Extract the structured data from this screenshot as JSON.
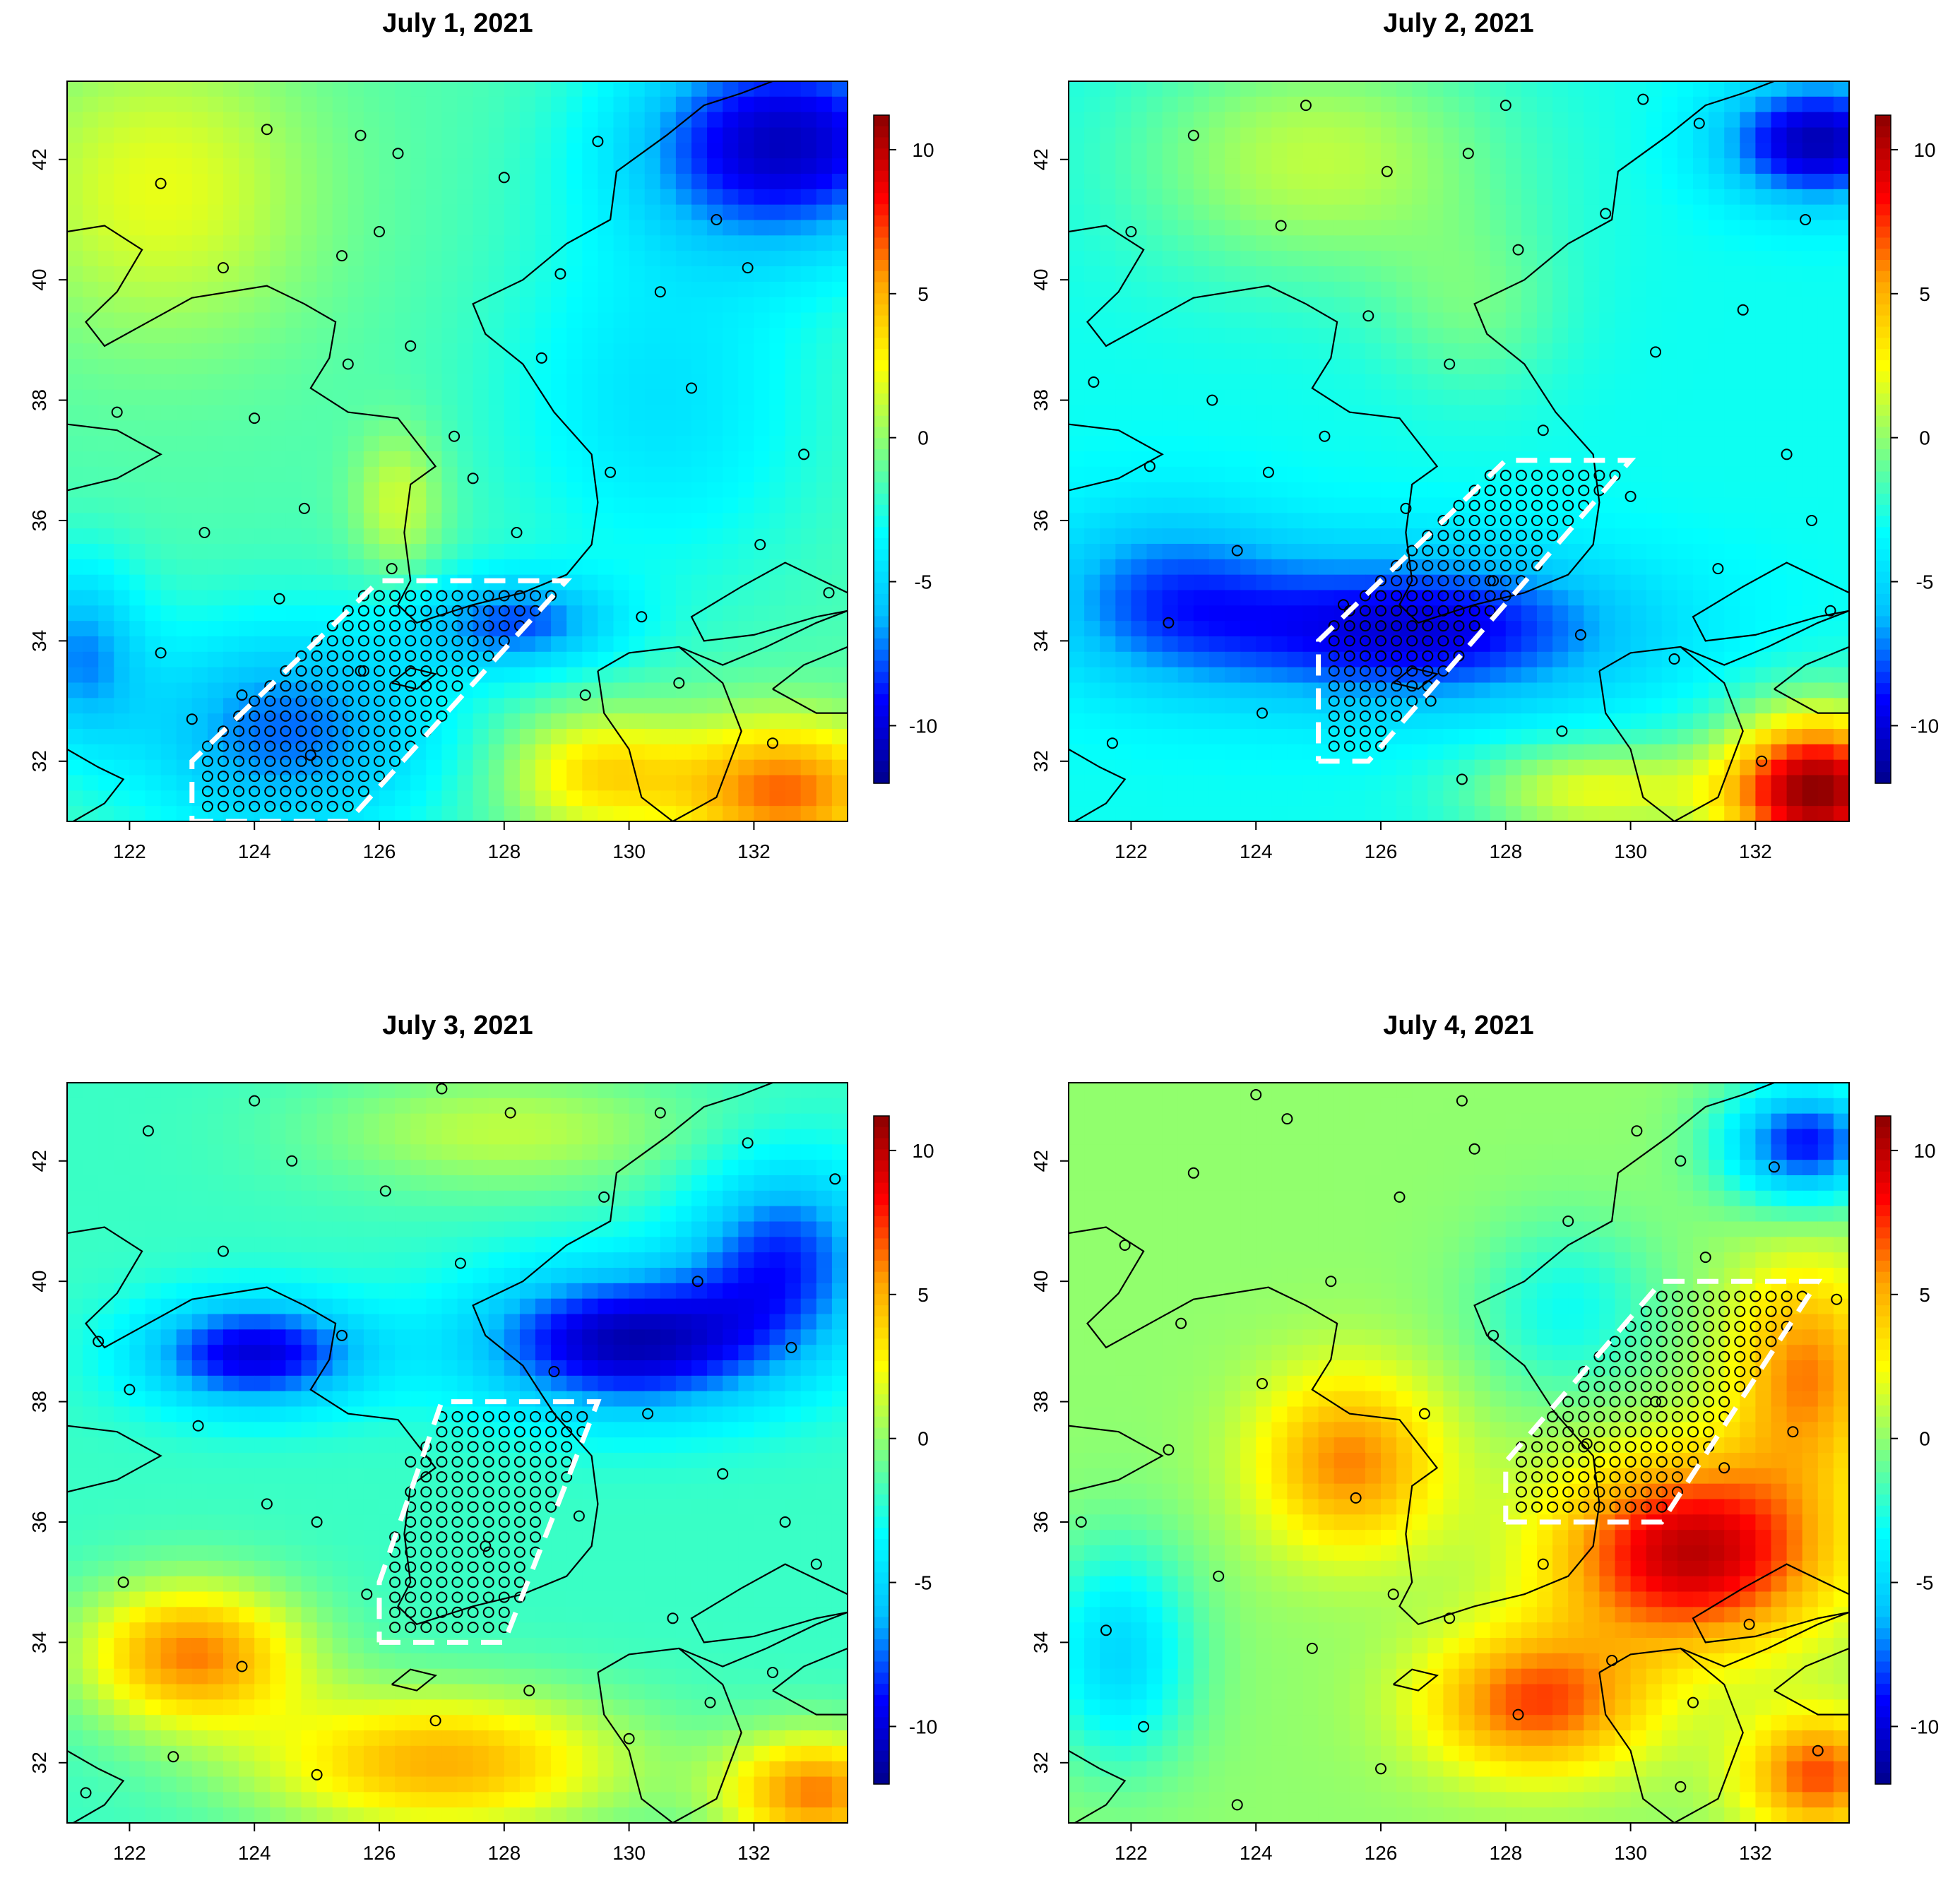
{
  "figure": {
    "panels": [
      {
        "title": "July 1, 2021"
      },
      {
        "title": "July 2, 2021"
      },
      {
        "title": "July 3, 2021"
      },
      {
        "title": "July 4, 2021"
      }
    ]
  },
  "chart_data": [
    {
      "type": "heatmap",
      "title": "July 1, 2021",
      "xlim": [
        121,
        133.5
      ],
      "ylim": [
        31,
        43.3
      ],
      "x_ticks": [
        122,
        124,
        126,
        128,
        130,
        132
      ],
      "y_ticks": [
        32,
        34,
        36,
        38,
        40,
        42
      ],
      "colorbar": {
        "range": [
          -12,
          11.2
        ],
        "ticks": [
          10,
          5,
          0,
          -5,
          -10
        ],
        "colors": [
          "#00008b",
          "#0000ff",
          "#00bfff",
          "#00ffff",
          "#7fff7f",
          "#ffff00",
          "#ffa500",
          "#ff0000",
          "#8b0000"
        ]
      },
      "field": {
        "base": -1.5,
        "features": [
          {
            "lon": 132.5,
            "lat": 42.3,
            "amp": -9,
            "sx": 2.5,
            "sy": 1.8
          },
          {
            "lon": 124.5,
            "lat": 32.5,
            "amp": -6,
            "sx": 2.5,
            "sy": 1.8
          },
          {
            "lon": 128.2,
            "lat": 34.3,
            "amp": -6,
            "sx": 1.6,
            "sy": 0.8
          },
          {
            "lon": 130.5,
            "lat": 38.0,
            "amp": -3,
            "sx": 2.5,
            "sy": 3.0
          },
          {
            "lon": 122.5,
            "lat": 41.5,
            "amp": 3.5,
            "sx": 2.5,
            "sy": 2.5
          },
          {
            "lon": 126.3,
            "lat": 36.3,
            "amp": 3,
            "sx": 0.7,
            "sy": 1.2
          },
          {
            "lon": 132.5,
            "lat": 31.5,
            "amp": 8,
            "sx": 1.8,
            "sy": 1.2
          },
          {
            "lon": 129.5,
            "lat": 31.8,
            "amp": 5,
            "sx": 1.5,
            "sy": 1.0
          },
          {
            "lon": 121.2,
            "lat": 33.8,
            "amp": -5,
            "sx": 1.0,
            "sy": 1.5
          }
        ]
      },
      "box": [
        [
          123,
          31
        ],
        [
          125.5,
          31
        ],
        [
          129,
          35
        ],
        [
          126,
          35
        ],
        [
          123,
          32
        ],
        [
          123,
          31
        ]
      ]
    },
    {
      "type": "heatmap",
      "title": "July 2, 2021",
      "xlim": [
        121,
        133.5
      ],
      "ylim": [
        31,
        43.3
      ],
      "x_ticks": [
        122,
        124,
        126,
        128,
        130,
        132
      ],
      "y_ticks": [
        32,
        34,
        36,
        38,
        40,
        42
      ],
      "colorbar": {
        "range": [
          -12,
          11.2
        ],
        "ticks": [
          10,
          5,
          0,
          -5,
          -10
        ],
        "colors": [
          "#00008b",
          "#0000ff",
          "#00bfff",
          "#00ffff",
          "#7fff7f",
          "#ffff00",
          "#ffa500",
          "#ff0000",
          "#8b0000"
        ]
      },
      "field": {
        "base": -3,
        "features": [
          {
            "lon": 126.5,
            "lat": 34.2,
            "amp": -7,
            "sx": 3.5,
            "sy": 1.3
          },
          {
            "lon": 122.5,
            "lat": 34.8,
            "amp": -4,
            "sx": 2.0,
            "sy": 1.5
          },
          {
            "lon": 133.0,
            "lat": 42.3,
            "amp": -8,
            "sx": 1.5,
            "sy": 1.0
          },
          {
            "lon": 133.0,
            "lat": 31.5,
            "amp": 14,
            "sx": 1.5,
            "sy": 1.3
          },
          {
            "lon": 129.5,
            "lat": 31.5,
            "amp": 5,
            "sx": 2.0,
            "sy": 0.8
          },
          {
            "lon": 125.0,
            "lat": 42.0,
            "amp": 4,
            "sx": 3.0,
            "sy": 2.0
          },
          {
            "lon": 127.5,
            "lat": 39.5,
            "amp": 2,
            "sx": 1.5,
            "sy": 1.5
          }
        ]
      },
      "box": [
        [
          125,
          32
        ],
        [
          125.8,
          32
        ],
        [
          130,
          37
        ],
        [
          128,
          37
        ],
        [
          125,
          34
        ],
        [
          125,
          32
        ]
      ]
    },
    {
      "type": "heatmap",
      "title": "July 3, 2021",
      "xlim": [
        121,
        133.5
      ],
      "ylim": [
        31,
        43.3
      ],
      "x_ticks": [
        122,
        124,
        126,
        128,
        130,
        132
      ],
      "y_ticks": [
        32,
        34,
        36,
        38,
        40,
        42
      ],
      "colorbar": {
        "range": [
          -12,
          11.2
        ],
        "ticks": [
          10,
          5,
          0,
          -5,
          -10
        ],
        "colors": [
          "#00008b",
          "#0000ff",
          "#00bfff",
          "#00ffff",
          "#7fff7f",
          "#ffff00",
          "#ffa500",
          "#ff0000",
          "#8b0000"
        ]
      },
      "field": {
        "base": -2,
        "features": [
          {
            "lon": 124.0,
            "lat": 38.8,
            "amp": -8,
            "sx": 1.8,
            "sy": 0.9
          },
          {
            "lon": 130.0,
            "lat": 39.0,
            "amp": -9,
            "sx": 2.5,
            "sy": 1.2
          },
          {
            "lon": 132.5,
            "lat": 40.5,
            "amp": -6,
            "sx": 1.5,
            "sy": 1.5
          },
          {
            "lon": 123.0,
            "lat": 33.8,
            "amp": 8,
            "sx": 1.8,
            "sy": 1.2
          },
          {
            "lon": 127.0,
            "lat": 32.0,
            "amp": 7,
            "sx": 3.0,
            "sy": 1.2
          },
          {
            "lon": 133.0,
            "lat": 31.5,
            "amp": 8,
            "sx": 1.5,
            "sy": 1.0
          },
          {
            "lon": 128.0,
            "lat": 42.5,
            "amp": 3,
            "sx": 3.0,
            "sy": 1.0
          }
        ]
      },
      "box": [
        [
          126,
          34
        ],
        [
          128,
          34
        ],
        [
          129.5,
          38
        ],
        [
          127,
          38
        ],
        [
          126,
          35
        ],
        [
          126,
          34
        ]
      ]
    },
    {
      "type": "heatmap",
      "title": "July 4, 2021",
      "xlim": [
        121,
        133.5
      ],
      "ylim": [
        31,
        43.3
      ],
      "x_ticks": [
        122,
        124,
        126,
        128,
        130,
        132
      ],
      "y_ticks": [
        32,
        34,
        36,
        38,
        40,
        42
      ],
      "colorbar": {
        "range": [
          -12,
          11.2
        ],
        "ticks": [
          10,
          5,
          0,
          -5,
          -10
        ],
        "colors": [
          "#00008b",
          "#0000ff",
          "#00bfff",
          "#00ffff",
          "#7fff7f",
          "#ffff00",
          "#ffa500",
          "#ff0000",
          "#8b0000"
        ]
      },
      "field": {
        "base": 0,
        "features": [
          {
            "lon": 131.0,
            "lat": 35.5,
            "amp": 10,
            "sx": 2.2,
            "sy": 1.6
          },
          {
            "lon": 128.5,
            "lat": 33.0,
            "amp": 7,
            "sx": 1.8,
            "sy": 1.2
          },
          {
            "lon": 132.8,
            "lat": 38.5,
            "amp": 6,
            "sx": 1.2,
            "sy": 1.8
          },
          {
            "lon": 125.5,
            "lat": 37.0,
            "amp": 6,
            "sx": 1.5,
            "sy": 1.5
          },
          {
            "lon": 133.0,
            "lat": 31.8,
            "amp": 7,
            "sx": 1.2,
            "sy": 1.0
          },
          {
            "lon": 121.8,
            "lat": 33.8,
            "amp": -5,
            "sx": 1.2,
            "sy": 1.8
          },
          {
            "lon": 132.8,
            "lat": 42.3,
            "amp": -9,
            "sx": 1.3,
            "sy": 1.0
          },
          {
            "lon": 129.0,
            "lat": 39.5,
            "amp": -3,
            "sx": 1.5,
            "sy": 1.5
          }
        ]
      },
      "box": [
        [
          128,
          36
        ],
        [
          130.5,
          36
        ],
        [
          133,
          40
        ],
        [
          130.5,
          40
        ],
        [
          128,
          37
        ],
        [
          128,
          36
        ]
      ]
    }
  ]
}
